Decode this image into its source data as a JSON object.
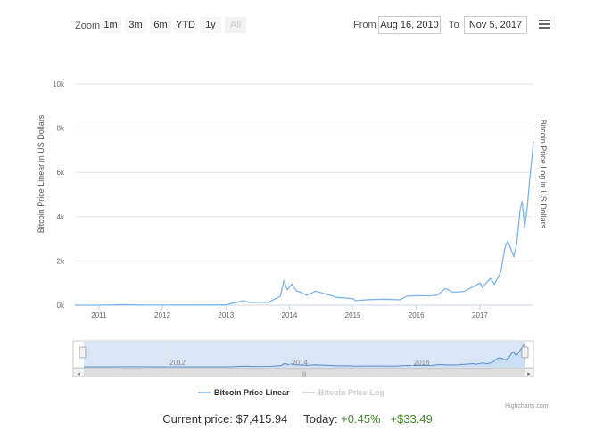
{
  "toolbar": {
    "zoom_label": "Zoom",
    "buttons": [
      "1m",
      "3m",
      "6m",
      "YTD",
      "1y",
      "All"
    ],
    "from_label": "From",
    "from_value": "Aug 16, 2010",
    "to_label": "To",
    "to_value": "Nov 5, 2017"
  },
  "chart_data": {
    "type": "line",
    "title": "",
    "ylabel": "Bitcoin Price Linear in US Dollars",
    "ylabel_right": "Bitcoin Price Log in US Dollars",
    "ylim": [
      0,
      10000
    ],
    "y_ticks": [
      0,
      2000,
      4000,
      6000,
      8000,
      10000
    ],
    "y_tick_labels": [
      "0k",
      "2k",
      "4k",
      "6k",
      "8k",
      "10k"
    ],
    "xlim": [
      "2010-08-16",
      "2017-11-05"
    ],
    "x_ticks": [
      "2011-01-01",
      "2012-01-01",
      "2013-01-01",
      "2014-01-01",
      "2015-01-01",
      "2016-01-01",
      "2017-01-01"
    ],
    "x_tick_labels": [
      "2011",
      "2012",
      "2013",
      "2014",
      "2015",
      "2016",
      "2017"
    ],
    "grid": true,
    "legend_position": "bottom-center",
    "series": [
      {
        "name": "Bitcoin Price Linear",
        "color": "#7cb5ec",
        "visible": true,
        "x": [
          "2010-08-16",
          "2011-01-01",
          "2011-06-10",
          "2011-09-01",
          "2012-01-01",
          "2012-08-15",
          "2013-01-01",
          "2013-04-10",
          "2013-05-15",
          "2013-09-01",
          "2013-11-10",
          "2013-11-30",
          "2013-12-20",
          "2014-01-15",
          "2014-02-10",
          "2014-03-01",
          "2014-04-10",
          "2014-06-01",
          "2014-08-01",
          "2014-10-01",
          "2015-01-01",
          "2015-01-15",
          "2015-04-01",
          "2015-07-01",
          "2015-10-01",
          "2015-11-05",
          "2016-01-01",
          "2016-03-01",
          "2016-05-01",
          "2016-06-17",
          "2016-08-01",
          "2016-10-01",
          "2017-01-03",
          "2017-01-15",
          "2017-03-01",
          "2017-03-25",
          "2017-05-01",
          "2017-05-25",
          "2017-06-10",
          "2017-07-15",
          "2017-08-01",
          "2017-08-20",
          "2017-09-01",
          "2017-09-15",
          "2017-09-30",
          "2017-10-15",
          "2017-11-05"
        ],
        "values": [
          0.07,
          0.3,
          25,
          5,
          5,
          10,
          13,
          200,
          120,
          130,
          400,
          1100,
          700,
          950,
          650,
          600,
          450,
          630,
          500,
          350,
          300,
          200,
          250,
          270,
          240,
          400,
          430,
          420,
          450,
          750,
          580,
          620,
          1000,
          800,
          1200,
          950,
          1500,
          2600,
          2900,
          2200,
          2800,
          4300,
          4700,
          3500,
          4400,
          5700,
          7400
        ]
      },
      {
        "name": "Bitcoin Price Log",
        "color": "#cccccc",
        "visible": false
      }
    ]
  },
  "navigator": {
    "labels": [
      "2012",
      "2014",
      "2016"
    ],
    "label_x": [
      "2012-01-01",
      "2014-01-01",
      "2016-01-01"
    ]
  },
  "credits": "Highcharts.com",
  "footer": {
    "price_label": "Current price: $7,415.94",
    "today_label": "Today:",
    "change_pct": "+0.45%",
    "change_abs": "+$33.49"
  }
}
